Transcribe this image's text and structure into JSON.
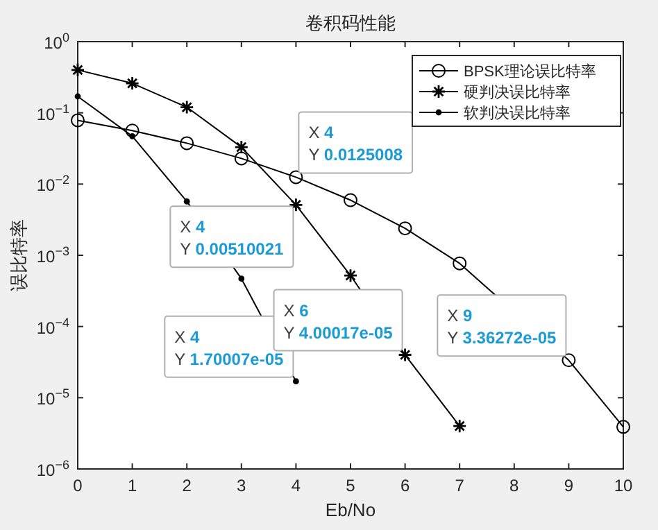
{
  "chart_data": {
    "type": "line",
    "title": "卷积码性能",
    "xlabel": "Eb/No",
    "ylabel": "误比特率",
    "series": [
      {
        "name": "BPSK理论误比特率",
        "color": "#000000",
        "marker": "circle",
        "x": [
          0,
          1,
          2,
          3,
          4,
          5,
          6,
          7,
          9,
          10
        ],
        "values": [
          0.0786,
          0.0563,
          0.0375,
          0.0229,
          0.0125008,
          0.00595,
          0.00239,
          0.00077,
          3.36272e-05,
          3.9e-06
        ]
      },
      {
        "name": "硬判决误比特率",
        "color": "#000000",
        "marker": "cross",
        "x": [
          0,
          1,
          2,
          3,
          4,
          5,
          6,
          7
        ],
        "values": [
          0.4,
          0.26,
          0.12,
          0.033,
          0.00510021,
          0.00052,
          4.00017e-05,
          4e-06
        ]
      },
      {
        "name": "软判决误比特率",
        "color": "#000000",
        "marker": "dot",
        "x": [
          0,
          1,
          2,
          3,
          4
        ],
        "values": [
          0.17,
          0.047,
          0.0057,
          0.00047,
          1.70007e-05
        ]
      }
    ],
    "log": true,
    "xlim": [
      0,
      10
    ],
    "ylim": [
      1e-06,
      1
    ],
    "xticks": [
      0,
      1,
      2,
      3,
      4,
      5,
      6,
      7,
      8,
      9,
      10
    ],
    "yticks": [
      {
        "value": 1e-06,
        "label": "10$^{−6}$"
      },
      {
        "value": 1e-05,
        "label": "10$^{−5}$"
      },
      {
        "value": 0.0001,
        "label": "10$^{−4}$"
      },
      {
        "value": 0.001,
        "label": "10$^{−3}$"
      },
      {
        "value": 0.01,
        "label": "10$^{−2}$"
      },
      {
        "value": 0.1,
        "label": "10$^{−1}$"
      },
      {
        "value": 1,
        "label": "10$^{0}$"
      }
    ],
    "grid": false,
    "legend": "top right",
    "line_style": "solid",
    "annotations": [
      {
        "text": "X 4\nY 0.0125008",
        "x": 4,
        "y": 0.0125008
      },
      {
        "text": "X 4\nY 0.00510021",
        "x": 4,
        "y": 0.00510021
      },
      {
        "text": "X 4\nY 1.70007e-05",
        "x": 4,
        "y": 1.70007e-05
      },
      {
        "text": "X 6\nY 4.00017e-05",
        "x": 6,
        "y": 4.00017e-05
      },
      {
        "text": "X 9\nY 3.36272e-05",
        "x": 9,
        "y": 3.36272e-05
      }
    ]
  }
}
